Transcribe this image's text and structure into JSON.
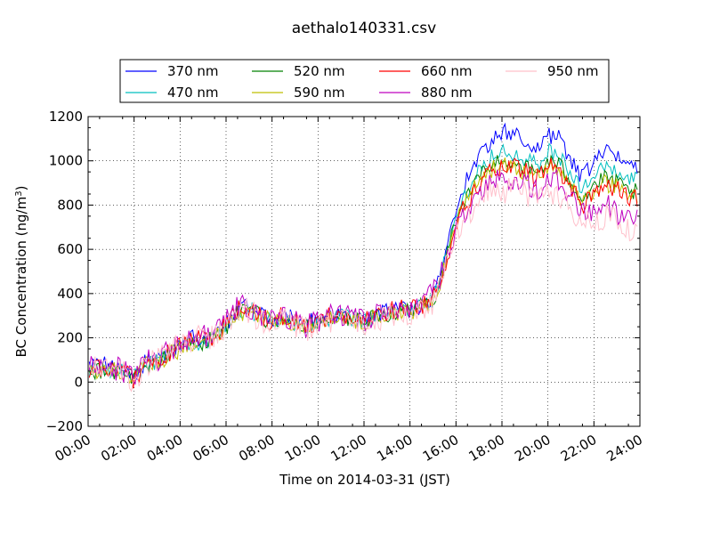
{
  "chart_data": {
    "type": "line",
    "title": "aethalo140331.csv",
    "xlabel": "Time on 2014-03-31 (JST)",
    "ylabel": "BC Concentration (ng/m",
    "ylabel_sup": "3",
    "ylabel_close": ")",
    "xlim": [
      0,
      24
    ],
    "ylim": [
      -200,
      1200
    ],
    "grid": true,
    "legend_position": "top",
    "x_ticks": [
      0,
      2,
      4,
      6,
      8,
      10,
      12,
      14,
      16,
      18,
      20,
      22,
      24
    ],
    "x_tick_labels": [
      "00:00",
      "02:00",
      "04:00",
      "06:00",
      "08:00",
      "10:00",
      "12:00",
      "14:00",
      "16:00",
      "18:00",
      "20:00",
      "22:00",
      "24:00"
    ],
    "y_ticks": [
      -200,
      0,
      200,
      400,
      600,
      800,
      1000,
      1200
    ],
    "y_tick_labels": [
      "−200",
      "0",
      "200",
      "400",
      "600",
      "800",
      "1000",
      "1200"
    ],
    "x_hours": [
      0,
      0.5,
      1,
      1.5,
      2,
      2.5,
      3,
      3.5,
      4,
      4.5,
      5,
      5.5,
      6,
      6.5,
      7,
      7.5,
      8,
      8.5,
      9,
      9.5,
      10,
      10.5,
      11,
      11.5,
      12,
      12.5,
      13,
      13.5,
      14,
      14.5,
      15,
      15.5,
      16,
      16.5,
      17,
      17.5,
      18,
      18.5,
      19,
      19.5,
      20,
      20.5,
      21,
      21.5,
      22,
      22.5,
      23,
      23.5
    ],
    "series": [
      {
        "name": "370 nm",
        "color": "#0000ff",
        "values": [
          60,
          80,
          70,
          60,
          30,
          90,
          100,
          130,
          170,
          200,
          190,
          210,
          260,
          330,
          340,
          310,
          280,
          300,
          280,
          260,
          290,
          300,
          310,
          290,
          280,
          300,
          320,
          330,
          330,
          350,
          380,
          560,
          800,
          920,
          1020,
          1090,
          1130,
          1120,
          1090,
          1060,
          1110,
          1100,
          1010,
          920,
          990,
          1040,
          1020,
          980
        ],
        "noise": 40
      },
      {
        "name": "470 nm",
        "color": "#00bfbf",
        "values": [
          50,
          60,
          60,
          50,
          20,
          80,
          90,
          120,
          160,
          190,
          180,
          200,
          250,
          320,
          330,
          300,
          270,
          290,
          270,
          250,
          280,
          290,
          300,
          280,
          270,
          290,
          310,
          320,
          320,
          340,
          370,
          540,
          760,
          870,
          960,
          1020,
          1050,
          1040,
          1010,
          980,
          1040,
          1020,
          950,
          870,
          930,
          970,
          950,
          910
        ],
        "noise": 40
      },
      {
        "name": "520 nm",
        "color": "#008000",
        "values": [
          50,
          55,
          55,
          45,
          20,
          80,
          90,
          120,
          160,
          190,
          180,
          200,
          250,
          310,
          320,
          300,
          270,
          290,
          270,
          250,
          280,
          290,
          300,
          280,
          270,
          290,
          310,
          320,
          320,
          340,
          360,
          530,
          740,
          840,
          930,
          980,
          1000,
          1000,
          970,
          940,
          1000,
          980,
          910,
          830,
          890,
          920,
          900,
          860
        ],
        "noise": 40
      },
      {
        "name": "590 nm",
        "color": "#bfbf00",
        "values": [
          45,
          50,
          55,
          45,
          20,
          75,
          90,
          120,
          150,
          180,
          180,
          195,
          245,
          300,
          310,
          300,
          270,
          280,
          270,
          250,
          270,
          290,
          295,
          280,
          265,
          290,
          305,
          315,
          315,
          335,
          355,
          520,
          730,
          820,
          910,
          960,
          980,
          980,
          950,
          920,
          980,
          960,
          890,
          810,
          870,
          900,
          880,
          840
        ],
        "noise": 40
      },
      {
        "name": "660 nm",
        "color": "#ff0000",
        "values": [
          60,
          70,
          60,
          40,
          10,
          80,
          90,
          130,
          170,
          200,
          200,
          210,
          260,
          330,
          340,
          300,
          270,
          300,
          280,
          250,
          280,
          300,
          300,
          280,
          270,
          300,
          320,
          330,
          330,
          350,
          380,
          520,
          720,
          810,
          900,
          950,
          960,
          970,
          950,
          920,
          980,
          960,
          880,
          800,
          860,
          890,
          870,
          830
        ],
        "noise": 45
      },
      {
        "name": "880 nm",
        "color": "#bf00bf",
        "values": [
          70,
          80,
          70,
          50,
          20,
          90,
          100,
          140,
          180,
          210,
          210,
          220,
          270,
          340,
          340,
          300,
          270,
          300,
          280,
          250,
          280,
          310,
          310,
          290,
          270,
          300,
          330,
          340,
          340,
          360,
          400,
          520,
          700,
          780,
          860,
          900,
          910,
          920,
          900,
          870,
          920,
          900,
          830,
          750,
          790,
          800,
          770,
          730
        ],
        "noise": 55
      },
      {
        "name": "950 nm",
        "color": "#ffc0cb",
        "values": [
          60,
          70,
          60,
          40,
          10,
          80,
          90,
          130,
          170,
          200,
          200,
          210,
          250,
          320,
          320,
          280,
          260,
          280,
          260,
          230,
          260,
          280,
          290,
          270,
          250,
          280,
          300,
          310,
          310,
          330,
          360,
          500,
          680,
          760,
          830,
          860,
          860,
          870,
          850,
          820,
          860,
          840,
          780,
          700,
          740,
          750,
          720,
          680
        ],
        "noise": 60
      }
    ]
  }
}
